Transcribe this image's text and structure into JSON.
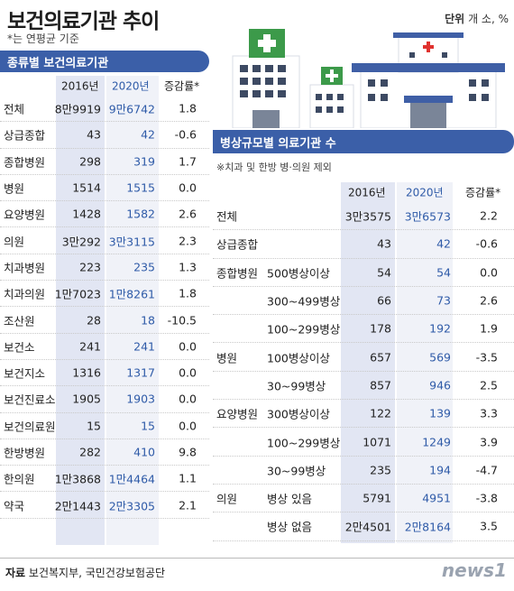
{
  "title": "보건의료기관 추이",
  "subtitle": "*는 연평균 기준",
  "unit_label": "단위",
  "unit_value": "개 소, %",
  "table1": {
    "banner": "종류별 보건의료기관",
    "headers": [
      "2016년",
      "2020년",
      "증감률*"
    ],
    "rows": [
      {
        "cat": "전체",
        "y2016": "8만9919",
        "y2020": "9만6742",
        "change": "1.8"
      },
      {
        "cat": "상급종합",
        "y2016": "43",
        "y2020": "42",
        "change": "-0.6"
      },
      {
        "cat": "종합병원",
        "y2016": "298",
        "y2020": "319",
        "change": "1.7"
      },
      {
        "cat": "병원",
        "y2016": "1514",
        "y2020": "1515",
        "change": "0.0"
      },
      {
        "cat": "요양병원",
        "y2016": "1428",
        "y2020": "1582",
        "change": "2.6"
      },
      {
        "cat": "의원",
        "y2016": "3만292",
        "y2020": "3만3115",
        "change": "2.3"
      },
      {
        "cat": "치과병원",
        "y2016": "223",
        "y2020": "235",
        "change": "1.3"
      },
      {
        "cat": "치과의원",
        "y2016": "1만7023",
        "y2020": "1만8261",
        "change": "1.8"
      },
      {
        "cat": "조산원",
        "y2016": "28",
        "y2020": "18",
        "change": "-10.5"
      },
      {
        "cat": "보건소",
        "y2016": "241",
        "y2020": "241",
        "change": "0.0"
      },
      {
        "cat": "보건지소",
        "y2016": "1316",
        "y2020": "1317",
        "change": "0.0"
      },
      {
        "cat": "보건진료소",
        "y2016": "1905",
        "y2020": "1903",
        "change": "0.0"
      },
      {
        "cat": "보건의료원",
        "y2016": "15",
        "y2020": "15",
        "change": "0.0"
      },
      {
        "cat": "한방병원",
        "y2016": "282",
        "y2020": "410",
        "change": "9.8"
      },
      {
        "cat": "한의원",
        "y2016": "1만3868",
        "y2020": "1만4464",
        "change": "1.1"
      },
      {
        "cat": "약국",
        "y2016": "2만1443",
        "y2020": "2만3305",
        "change": "2.1"
      }
    ]
  },
  "table2": {
    "banner": "병상규모별 의료기관 수",
    "note": "※치과 및 한방 병·의원 제외",
    "headers": [
      "2016년",
      "2020년",
      "증감률*"
    ],
    "rows": [
      {
        "cat": "전체",
        "sub": "",
        "y2016": "3만3575",
        "y2020": "3만6573",
        "change": "2.2"
      },
      {
        "cat": "상급종합",
        "sub": "",
        "y2016": "43",
        "y2020": "42",
        "change": "-0.6"
      },
      {
        "cat": "종합병원",
        "sub": "500병상이상",
        "y2016": "54",
        "y2020": "54",
        "change": "0.0"
      },
      {
        "cat": "",
        "sub": "300~499병상",
        "y2016": "66",
        "y2020": "73",
        "change": "2.6"
      },
      {
        "cat": "",
        "sub": "100~299병상",
        "y2016": "178",
        "y2020": "192",
        "change": "1.9"
      },
      {
        "cat": "병원",
        "sub": "100병상이상",
        "y2016": "657",
        "y2020": "569",
        "change": "-3.5"
      },
      {
        "cat": "",
        "sub": "30~99병상",
        "y2016": "857",
        "y2020": "946",
        "change": "2.5"
      },
      {
        "cat": "요양병원",
        "sub": "300병상이상",
        "y2016": "122",
        "y2020": "139",
        "change": "3.3"
      },
      {
        "cat": "",
        "sub": "100~299병상",
        "y2016": "1071",
        "y2020": "1249",
        "change": "3.9"
      },
      {
        "cat": "",
        "sub": "30~99병상",
        "y2016": "235",
        "y2020": "194",
        "change": "-4.7"
      },
      {
        "cat": "의원",
        "sub": "병상 있음",
        "y2016": "5791",
        "y2020": "4951",
        "change": "-3.8"
      },
      {
        "cat": "",
        "sub": "병상 없음",
        "y2016": "2만4501",
        "y2020": "2만8164",
        "change": "3.5"
      }
    ]
  },
  "source_label": "자료",
  "source_value": "보건복지부, 국민건강보험공단",
  "logo": "news1",
  "colors": {
    "accent": "#3b5fa8",
    "value2020": "#2f5ba8",
    "shade2016": "#e2e6f3",
    "shade2020": "#f0f2f8"
  }
}
